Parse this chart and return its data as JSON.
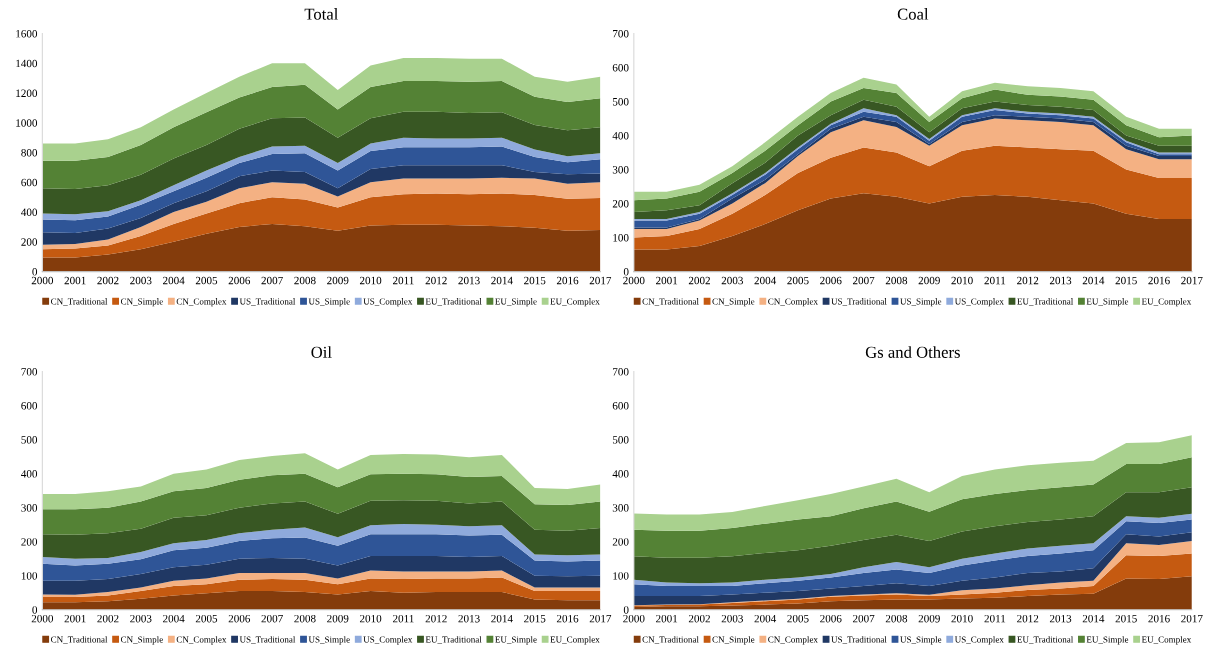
{
  "chart_data": [
    {
      "type": "area",
      "title": "Total",
      "stacked": true,
      "legend": "bottom",
      "grid": false,
      "categories": [
        "2000",
        "2001",
        "2002",
        "2003",
        "2004",
        "2005",
        "2006",
        "2007",
        "2008",
        "2009",
        "2010",
        "2011",
        "2012",
        "2013",
        "2014",
        "2015",
        "2016",
        "2017"
      ],
      "ylim": [
        0,
        1600
      ],
      "yticks": [
        0,
        200,
        400,
        600,
        800,
        1000,
        1200,
        1400,
        1600
      ],
      "series": [
        {
          "name": "CN_Traditional",
          "color": "#843c0c",
          "values": [
            95,
            95,
            115,
            150,
            200,
            255,
            300,
            320,
            305,
            275,
            310,
            315,
            315,
            310,
            305,
            295,
            275,
            280
          ]
        },
        {
          "name": "CN_Simple",
          "color": "#c55a11",
          "values": [
            55,
            60,
            60,
            90,
            120,
            135,
            160,
            180,
            180,
            155,
            190,
            205,
            210,
            210,
            220,
            220,
            215,
            215
          ]
        },
        {
          "name": "CN_Complex",
          "color": "#f4b183",
          "values": [
            30,
            30,
            40,
            60,
            80,
            80,
            100,
            100,
            105,
            75,
            100,
            105,
            100,
            105,
            105,
            110,
            100,
            105
          ]
        },
        {
          "name": "US_Traditional",
          "color": "#203864",
          "values": [
            85,
            75,
            75,
            60,
            60,
            70,
            80,
            80,
            80,
            55,
            90,
            90,
            90,
            90,
            85,
            45,
            65,
            60
          ]
        },
        {
          "name": "US_Simple",
          "color": "#2f5597",
          "values": [
            85,
            85,
            80,
            90,
            80,
            90,
            90,
            110,
            125,
            120,
            120,
            120,
            120,
            120,
            125,
            100,
            80,
            95
          ]
        },
        {
          "name": "US_Complex",
          "color": "#8faadc",
          "values": [
            40,
            40,
            35,
            30,
            40,
            50,
            40,
            50,
            50,
            50,
            50,
            65,
            60,
            60,
            60,
            50,
            40,
            40
          ]
        },
        {
          "name": "EU_Traditional",
          "color": "#385723",
          "values": [
            170,
            170,
            175,
            170,
            180,
            170,
            190,
            190,
            190,
            170,
            170,
            175,
            180,
            170,
            170,
            165,
            175,
            175
          ]
        },
        {
          "name": "EU_Simple",
          "color": "#548235",
          "values": [
            185,
            190,
            190,
            200,
            210,
            220,
            210,
            210,
            220,
            190,
            210,
            205,
            205,
            210,
            210,
            190,
            190,
            195
          ]
        },
        {
          "name": "EU_Complex",
          "color": "#a9d18e",
          "values": [
            115,
            115,
            120,
            120,
            120,
            130,
            140,
            160,
            145,
            130,
            145,
            155,
            155,
            155,
            150,
            135,
            135,
            145
          ]
        }
      ]
    },
    {
      "type": "area",
      "title": "Coal",
      "stacked": true,
      "legend": "bottom",
      "grid": false,
      "categories": [
        "2000",
        "2001",
        "2002",
        "2003",
        "2004",
        "2005",
        "2006",
        "2007",
        "2008",
        "2009",
        "2010",
        "2011",
        "2012",
        "2013",
        "2014",
        "2015",
        "2016",
        "2017"
      ],
      "ylim": [
        0,
        700
      ],
      "yticks": [
        0,
        100,
        200,
        300,
        400,
        500,
        600,
        700
      ],
      "series": [
        {
          "name": "CN_Traditional",
          "color": "#843c0c",
          "values": [
            65,
            65,
            75,
            105,
            140,
            180,
            215,
            230,
            220,
            200,
            220,
            225,
            220,
            210,
            200,
            170,
            155,
            155
          ]
        },
        {
          "name": "CN_Simple",
          "color": "#c55a11",
          "values": [
            35,
            40,
            50,
            65,
            85,
            110,
            120,
            135,
            130,
            110,
            135,
            145,
            145,
            150,
            155,
            130,
            120,
            120
          ]
        },
        {
          "name": "CN_Complex",
          "color": "#f4b183",
          "values": [
            25,
            20,
            25,
            30,
            35,
            50,
            75,
            80,
            75,
            60,
            75,
            80,
            80,
            80,
            75,
            60,
            55,
            55
          ]
        },
        {
          "name": "US_Traditional",
          "color": "#203864",
          "values": [
            5,
            5,
            5,
            15,
            10,
            5,
            10,
            10,
            15,
            5,
            10,
            10,
            10,
            10,
            10,
            10,
            10,
            10
          ]
        },
        {
          "name": "US_Simple",
          "color": "#2f5597",
          "values": [
            20,
            20,
            15,
            10,
            15,
            15,
            10,
            15,
            15,
            10,
            15,
            15,
            10,
            10,
            10,
            10,
            5,
            5
          ]
        },
        {
          "name": "US_Complex",
          "color": "#8faadc",
          "values": [
            5,
            5,
            5,
            5,
            5,
            5,
            5,
            10,
            5,
            5,
            5,
            5,
            5,
            5,
            5,
            5,
            5,
            5
          ]
        },
        {
          "name": "EU_Traditional",
          "color": "#385723",
          "values": [
            20,
            25,
            20,
            30,
            30,
            35,
            25,
            25,
            25,
            20,
            20,
            20,
            20,
            20,
            20,
            15,
            20,
            20
          ]
        },
        {
          "name": "EU_Simple",
          "color": "#548235",
          "values": [
            35,
            35,
            40,
            30,
            35,
            30,
            40,
            35,
            40,
            30,
            30,
            35,
            30,
            30,
            30,
            30,
            25,
            30
          ]
        },
        {
          "name": "EU_Complex",
          "color": "#a9d18e",
          "values": [
            25,
            20,
            20,
            20,
            25,
            25,
            25,
            30,
            25,
            15,
            20,
            20,
            25,
            25,
            25,
            25,
            25,
            20
          ]
        }
      ]
    },
    {
      "type": "area",
      "title": "Oil",
      "stacked": true,
      "legend": "bottom",
      "grid": false,
      "categories": [
        "2000",
        "2001",
        "2002",
        "2003",
        "2004",
        "2005",
        "2006",
        "2007",
        "2008",
        "2009",
        "2010",
        "2011",
        "2012",
        "2013",
        "2014",
        "2015",
        "2016",
        "2017"
      ],
      "ylim": [
        0,
        700
      ],
      "yticks": [
        0,
        100,
        200,
        300,
        400,
        500,
        600,
        700
      ],
      "series": [
        {
          "name": "CN_Traditional",
          "color": "#843c0c",
          "values": [
            22,
            22,
            25,
            32,
            42,
            48,
            55,
            55,
            52,
            45,
            55,
            50,
            52,
            52,
            52,
            30,
            28,
            28
          ]
        },
        {
          "name": "CN_Simple",
          "color": "#c55a11",
          "values": [
            15,
            15,
            17,
            23,
            28,
            27,
            33,
            35,
            36,
            30,
            37,
            40,
            40,
            40,
            43,
            25,
            27,
            27
          ]
        },
        {
          "name": "CN_Complex",
          "color": "#f4b183",
          "values": [
            8,
            7,
            10,
            10,
            15,
            17,
            20,
            18,
            20,
            17,
            23,
            22,
            20,
            20,
            20,
            10,
            10,
            10
          ]
        },
        {
          "name": "US_Traditional",
          "color": "#203864",
          "values": [
            40,
            41,
            38,
            40,
            40,
            40,
            42,
            44,
            42,
            38,
            43,
            46,
            46,
            43,
            43,
            35,
            33,
            35
          ]
        },
        {
          "name": "US_Simple",
          "color": "#2f5597",
          "values": [
            50,
            45,
            45,
            43,
            50,
            50,
            52,
            58,
            62,
            58,
            64,
            64,
            64,
            63,
            62,
            45,
            44,
            45
          ]
        },
        {
          "name": "US_Complex",
          "color": "#8faadc",
          "values": [
            20,
            20,
            17,
            22,
            20,
            23,
            23,
            25,
            30,
            25,
            26,
            30,
            28,
            27,
            28,
            17,
            18,
            17
          ]
        },
        {
          "name": "EU_Traditional",
          "color": "#385723",
          "values": [
            67,
            70,
            73,
            68,
            75,
            73,
            75,
            77,
            76,
            69,
            72,
            70,
            70,
            67,
            70,
            73,
            72,
            78
          ]
        },
        {
          "name": "EU_Simple",
          "color": "#548235",
          "values": [
            73,
            75,
            75,
            80,
            78,
            80,
            82,
            83,
            82,
            78,
            78,
            78,
            78,
            78,
            75,
            75,
            76,
            78
          ]
        },
        {
          "name": "EU_Complex",
          "color": "#a9d18e",
          "values": [
            45,
            45,
            48,
            44,
            52,
            54,
            58,
            57,
            60,
            52,
            57,
            58,
            58,
            58,
            62,
            48,
            47,
            50
          ]
        }
      ]
    },
    {
      "type": "area",
      "title": "Gs and Others",
      "stacked": true,
      "legend": "bottom",
      "grid": false,
      "categories": [
        "2000",
        "2001",
        "2002",
        "2003",
        "2004",
        "2005",
        "2006",
        "2007",
        "2008",
        "2009",
        "2010",
        "2011",
        "2012",
        "2013",
        "2014",
        "2015",
        "2016",
        "2017"
      ],
      "ylim": [
        0,
        700
      ],
      "yticks": [
        0,
        100,
        200,
        300,
        400,
        500,
        600,
        700
      ],
      "series": [
        {
          "name": "CN_Traditional",
          "color": "#843c0c",
          "values": [
            8,
            10,
            10,
            12,
            15,
            18,
            25,
            28,
            30,
            30,
            33,
            35,
            40,
            45,
            47,
            92,
            90,
            98
          ]
        },
        {
          "name": "CN_Simple",
          "color": "#c55a11",
          "values": [
            4,
            4,
            5,
            8,
            10,
            12,
            13,
            14,
            15,
            10,
            12,
            15,
            18,
            17,
            23,
            68,
            68,
            67
          ]
        },
        {
          "name": "CN_Complex",
          "color": "#f4b183",
          "values": [
            1,
            1,
            1,
            2,
            2,
            2,
            2,
            3,
            3,
            4,
            12,
            12,
            14,
            18,
            15,
            35,
            32,
            37
          ]
        },
        {
          "name": "US_Traditional",
          "color": "#203864",
          "values": [
            27,
            25,
            24,
            23,
            23,
            23,
            22,
            25,
            30,
            26,
            28,
            33,
            36,
            32,
            37,
            27,
            25,
            26
          ]
        },
        {
          "name": "US_Simple",
          "color": "#2f5597",
          "values": [
            35,
            30,
            30,
            25,
            28,
            30,
            33,
            38,
            40,
            38,
            45,
            50,
            50,
            53,
            53,
            38,
            40,
            37
          ]
        },
        {
          "name": "US_Complex",
          "color": "#8faadc",
          "values": [
            13,
            10,
            8,
            10,
            10,
            10,
            10,
            17,
            22,
            17,
            20,
            20,
            22,
            23,
            20,
            15,
            15,
            17
          ]
        },
        {
          "name": "EU_Traditional",
          "color": "#385723",
          "values": [
            69,
            73,
            75,
            77,
            79,
            80,
            83,
            80,
            80,
            77,
            80,
            80,
            78,
            77,
            80,
            70,
            75,
            78
          ]
        },
        {
          "name": "EU_Simple",
          "color": "#548235",
          "values": [
            78,
            79,
            79,
            83,
            86,
            90,
            87,
            93,
            98,
            86,
            95,
            95,
            94,
            95,
            93,
            83,
            83,
            88
          ]
        },
        {
          "name": "EU_Complex",
          "color": "#a9d18e",
          "values": [
            48,
            48,
            48,
            47,
            52,
            57,
            65,
            64,
            67,
            57,
            68,
            72,
            73,
            72,
            70,
            62,
            64,
            65
          ]
        }
      ]
    }
  ]
}
